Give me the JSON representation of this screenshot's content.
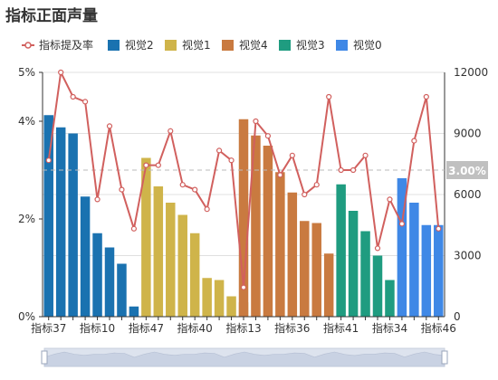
{
  "title": "指标正面声量",
  "colors": {
    "line": "#d1605e",
    "grid": "#e0e0e0",
    "axis_text": "#333333",
    "ref_line": "#bbbbbb",
    "badge_bg": "#c0c0c0",
    "zoom_bg": "#dde3ee",
    "zoom_border": "#c8cfdc"
  },
  "chart_data": {
    "type": "bar",
    "x_tick_labels": [
      "指标37",
      "指标10",
      "指标47",
      "指标40",
      "指标13",
      "指标36",
      "指标41",
      "指标34",
      "指标46"
    ],
    "categories": [
      "指标37",
      "",
      "",
      "",
      "指标10",
      "",
      "",
      "",
      "指标47",
      "",
      "",
      "",
      "指标40",
      "",
      "",
      "",
      "指标13",
      "",
      "",
      "",
      "指标36",
      "",
      "",
      "",
      "指标41",
      "",
      "",
      "",
      "指标34",
      "",
      "",
      "",
      "指标46"
    ],
    "left_axis": {
      "ticks": [
        "0%",
        "2%",
        "4%",
        "5%"
      ],
      "range": [
        0,
        0.05
      ]
    },
    "right_axis": {
      "ticks": [
        "0",
        "3000",
        "6000",
        "9000",
        "12000"
      ],
      "range": [
        0,
        12000
      ]
    },
    "reference_line": {
      "value": 0.03,
      "label": "3.00%",
      "axis": "left"
    },
    "series": [
      {
        "name": "指标提及率",
        "type": "line",
        "axis": "left",
        "color": "#d1605e",
        "values": [
          0.032,
          0.05,
          0.045,
          0.044,
          0.024,
          0.039,
          0.026,
          0.018,
          0.031,
          0.031,
          0.038,
          0.027,
          0.026,
          0.022,
          0.034,
          0.032,
          0.006,
          0.04,
          0.037,
          0.029,
          0.033,
          0.025,
          0.027,
          0.045,
          0.03,
          0.03,
          0.033,
          0.014,
          0.024,
          0.019,
          0.036,
          0.045,
          0.018
        ]
      },
      {
        "name": "视觉2",
        "type": "bar",
        "axis": "right",
        "color": "#1a72b0",
        "values": [
          9900,
          9300,
          9000,
          5900,
          4100,
          3400,
          2600,
          500,
          null,
          null,
          null,
          null,
          null,
          null,
          null,
          null,
          null,
          null,
          null,
          null,
          null,
          null,
          null,
          null,
          null,
          null,
          null,
          null,
          null,
          null,
          null,
          null,
          null
        ]
      },
      {
        "name": "视觉1",
        "type": "bar",
        "axis": "right",
        "color": "#cfb44a",
        "values": [
          null,
          null,
          null,
          null,
          null,
          null,
          null,
          null,
          7800,
          6400,
          5600,
          5000,
          4100,
          1900,
          1800,
          1000,
          700,
          null,
          null,
          null,
          null,
          null,
          null,
          null,
          null,
          null,
          null,
          null,
          null,
          null,
          null,
          null,
          null
        ]
      },
      {
        "name": "视觉4",
        "type": "bar",
        "axis": "right",
        "color": "#c97a40",
        "values": [
          null,
          null,
          null,
          null,
          null,
          null,
          null,
          null,
          null,
          null,
          null,
          null,
          null,
          null,
          null,
          null,
          9700,
          8900,
          8400,
          7100,
          6100,
          4700,
          4600,
          3100,
          null,
          null,
          null,
          null,
          null,
          null,
          null,
          null,
          null
        ]
      },
      {
        "name": "视觉3",
        "type": "bar",
        "axis": "right",
        "color": "#1f9c80",
        "values": [
          null,
          null,
          null,
          null,
          null,
          null,
          null,
          null,
          null,
          null,
          null,
          null,
          null,
          null,
          null,
          null,
          null,
          null,
          null,
          null,
          null,
          null,
          null,
          null,
          6500,
          5200,
          4200,
          3000,
          1800,
          null,
          null,
          null,
          null
        ]
      },
      {
        "name": "视觉0",
        "type": "bar",
        "axis": "right",
        "color": "#3f88e6",
        "values": [
          null,
          null,
          null,
          null,
          null,
          null,
          null,
          null,
          null,
          null,
          null,
          null,
          null,
          null,
          null,
          null,
          null,
          null,
          null,
          null,
          null,
          null,
          null,
          null,
          null,
          null,
          null,
          null,
          null,
          6800,
          5600,
          4500,
          4500
        ]
      }
    ],
    "legend": {
      "position": "top-left",
      "items": [
        "指标提及率",
        "视觉2",
        "视觉1",
        "视觉4",
        "视觉3",
        "视觉0"
      ]
    },
    "grid": true,
    "data_zoom": true
  }
}
